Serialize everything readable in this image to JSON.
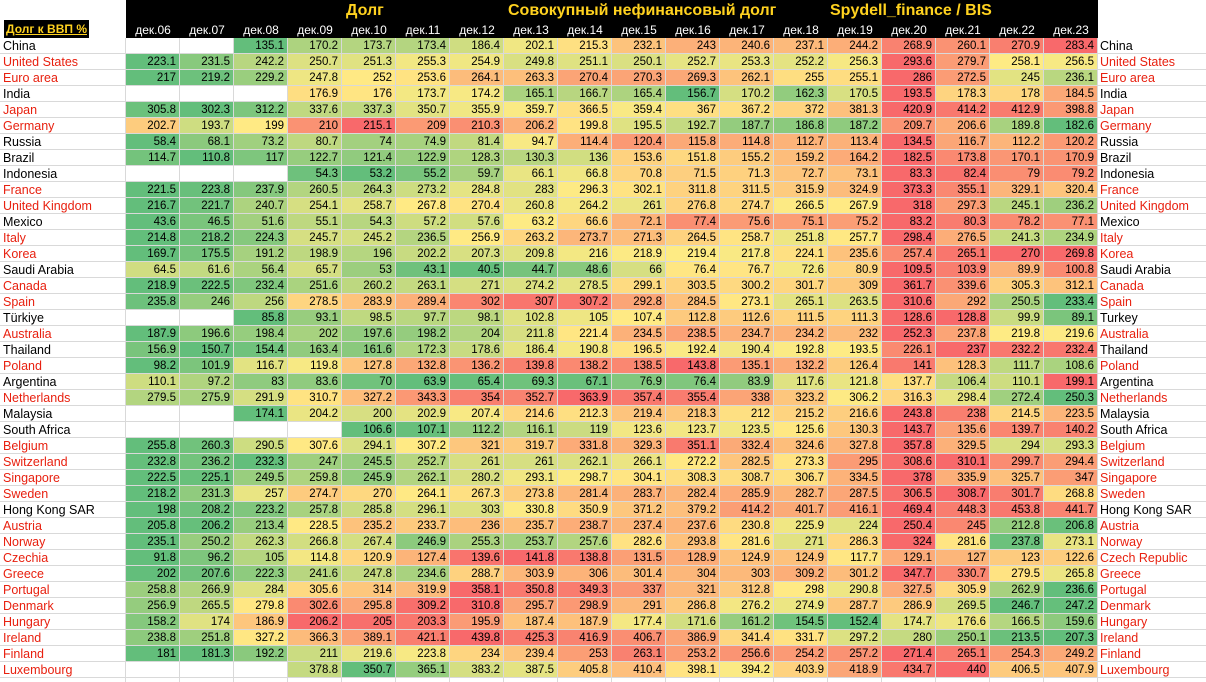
{
  "header": {
    "corner_label": "Долг к ВВП %",
    "title_left": "Долг",
    "title_mid": "Совокупный нефинансовый долг",
    "title_right": "Spydell_finance / BIS"
  },
  "months": [
    "дек.06",
    "дек.07",
    "дек.08",
    "дек.09",
    "дек.10",
    "дек.11",
    "дек.12",
    "дек.13",
    "дек.14",
    "дек.15",
    "дек.16",
    "дек.17",
    "дек.18",
    "дек.19",
    "дек.20",
    "дек.21",
    "дек.22",
    "дек.23"
  ],
  "colors": {
    "header_bg": "#000000",
    "header_text": "#ffd21f",
    "label_red": "#e8200f",
    "label_black": "#000000",
    "scale_low": "#63be7b",
    "scale_mid": "#ffeb84",
    "scale_high": "#f8696b"
  },
  "rows": [
    {
      "name": "China",
      "name_right": "China",
      "red": false,
      "values": [
        null,
        null,
        135.1,
        170.2,
        173.7,
        173.4,
        186.4,
        202.1,
        215.3,
        232.1,
        243,
        240.6,
        237.1,
        244.2,
        268.9,
        260.1,
        270.9,
        283.4
      ]
    },
    {
      "name": "United States",
      "name_right": "United States",
      "red": true,
      "values": [
        223.1,
        231.5,
        242.2,
        250.7,
        251.3,
        255.3,
        254.9,
        249.8,
        251.1,
        250.1,
        252.7,
        253.3,
        252.2,
        256.3,
        293.6,
        279.7,
        258.1,
        256.5
      ]
    },
    {
      "name": "Euro area",
      "name_right": "Euro area",
      "red": true,
      "values": [
        217,
        219.2,
        229.2,
        247.8,
        252,
        253.6,
        264.1,
        263.3,
        270.4,
        270.3,
        269.3,
        262.1,
        255,
        255.1,
        286,
        272.5,
        245,
        236.1
      ]
    },
    {
      "name": "India",
      "name_right": "India",
      "red": false,
      "values": [
        null,
        null,
        null,
        176.9,
        176,
        173.7,
        174.2,
        165.1,
        166.7,
        165.4,
        156.7,
        170.2,
        162.3,
        170.5,
        193.5,
        178.3,
        178,
        184.5
      ]
    },
    {
      "name": "Japan",
      "name_right": "Japan",
      "red": true,
      "values": [
        305.8,
        302.3,
        312.2,
        337.6,
        337.3,
        350.7,
        355.9,
        359.7,
        366.5,
        359.4,
        367,
        367.2,
        372,
        381.3,
        420.9,
        414.2,
        412.9,
        398.8
      ]
    },
    {
      "name": "Germany",
      "name_right": "Germany",
      "red": true,
      "values": [
        202.7,
        193.7,
        199,
        210,
        215.1,
        209,
        210.3,
        206.2,
        199.8,
        195.5,
        192.7,
        187.7,
        186.8,
        187.2,
        209.7,
        206.6,
        189.8,
        182.6
      ]
    },
    {
      "name": "Russia",
      "name_right": "Russia",
      "red": false,
      "values": [
        58.4,
        68.1,
        73.2,
        80.7,
        74,
        74.9,
        81.4,
        94.7,
        114.4,
        120.4,
        115.8,
        114.8,
        112.7,
        113.4,
        134.5,
        116.7,
        112.2,
        120.2
      ]
    },
    {
      "name": "Brazil",
      "name_right": "Brazil",
      "red": false,
      "values": [
        114.7,
        110.8,
        117,
        122.7,
        121.4,
        122.9,
        128.3,
        130.3,
        136,
        153.6,
        151.8,
        155.2,
        159.2,
        164.2,
        182.5,
        173.8,
        170.1,
        170.9
      ]
    },
    {
      "name": "Indonesia",
      "name_right": "Indonesia",
      "red": false,
      "values": [
        null,
        null,
        null,
        54.3,
        53.2,
        55.2,
        59.7,
        66.1,
        66.8,
        70.8,
        71.5,
        71.3,
        72.7,
        73.1,
        83.3,
        82.4,
        79,
        79.2
      ]
    },
    {
      "name": "France",
      "name_right": "France",
      "red": true,
      "values": [
        221.5,
        223.8,
        237.9,
        260.5,
        264.3,
        273.2,
        284.8,
        283,
        296.3,
        302.1,
        311.8,
        311.5,
        315.9,
        324.9,
        373.3,
        355.1,
        329.1,
        320.4
      ]
    },
    {
      "name": "United Kingdom",
      "name_right": "United Kingdom",
      "red": true,
      "values": [
        216.7,
        221.7,
        240.7,
        254.1,
        258.7,
        267.8,
        270.4,
        260.8,
        264.2,
        261,
        276.8,
        274.7,
        266.5,
        267.9,
        318,
        297.3,
        245.1,
        236.2
      ]
    },
    {
      "name": "Mexico",
      "name_right": "Mexico",
      "red": false,
      "values": [
        43.6,
        46.5,
        51.6,
        55.1,
        54.3,
        57.2,
        57.6,
        63.2,
        66.6,
        72.1,
        77.4,
        75.6,
        75.1,
        75.2,
        83.2,
        80.3,
        78.2,
        77.1
      ]
    },
    {
      "name": "Italy",
      "name_right": "Italy",
      "red": true,
      "values": [
        214.8,
        218.2,
        224.3,
        245.7,
        245.2,
        236.5,
        256.9,
        263.2,
        273.7,
        271.3,
        264.5,
        258.7,
        251.8,
        257.7,
        298.4,
        276.5,
        241.3,
        234.9
      ]
    },
    {
      "name": "Korea",
      "name_right": "Korea",
      "red": true,
      "values": [
        169.7,
        175.5,
        191.2,
        198.9,
        196,
        202.2,
        207.3,
        209.8,
        216,
        218.9,
        219.4,
        217.8,
        224.1,
        235.6,
        257.4,
        265.1,
        270,
        269.8
      ]
    },
    {
      "name": "Saudi Arabia",
      "name_right": "Saudi Arabia",
      "red": false,
      "values": [
        64.5,
        61.6,
        56.4,
        65.7,
        53,
        43.1,
        40.5,
        44.7,
        48.6,
        66,
        76.4,
        76.7,
        72.6,
        80.9,
        109.5,
        103.9,
        89.9,
        100.8
      ]
    },
    {
      "name": "Canada",
      "name_right": "Canada",
      "red": true,
      "values": [
        218.9,
        222.5,
        232.4,
        251.6,
        260.2,
        263.1,
        271,
        274.2,
        278.5,
        299.1,
        303.5,
        300.2,
        301.7,
        309,
        361.7,
        339.6,
        305.3,
        312.1
      ]
    },
    {
      "name": "Spain",
      "name_right": "Spain",
      "red": true,
      "values": [
        235.8,
        246,
        256,
        278.5,
        283.9,
        289.4,
        302,
        307,
        307.2,
        292.8,
        284.5,
        273.1,
        265.1,
        263.5,
        310.6,
        292,
        250.5,
        233.4
      ]
    },
    {
      "name": "Türkiye",
      "name_right": "Turkey",
      "red": false,
      "values": [
        null,
        null,
        85.8,
        93.1,
        98.5,
        97.7,
        98.1,
        102.8,
        105,
        107.4,
        112.8,
        112.6,
        111.5,
        111.3,
        128.6,
        128.8,
        99.9,
        89.1
      ]
    },
    {
      "name": "Australia",
      "name_right": "Australia",
      "red": true,
      "values": [
        187.9,
        196.6,
        198.4,
        202,
        197.6,
        198.2,
        204,
        211.8,
        221.4,
        234.5,
        238.5,
        234.7,
        234.2,
        232,
        252.3,
        237.8,
        219.8,
        219.6
      ]
    },
    {
      "name": "Thailand",
      "name_right": "Thailand",
      "red": false,
      "values": [
        156.9,
        150.7,
        154.4,
        163.4,
        161.6,
        172.3,
        178.6,
        186.4,
        190.8,
        196.5,
        192.4,
        190.4,
        192.8,
        193.5,
        226.1,
        237,
        232.2,
        232.4
      ]
    },
    {
      "name": "Poland",
      "name_right": "Poland",
      "red": true,
      "values": [
        98.2,
        101.9,
        116.7,
        119.8,
        127.8,
        132.8,
        136.2,
        139.8,
        138.2,
        138.5,
        143.8,
        135.1,
        132.2,
        126.4,
        141,
        128.3,
        111.7,
        108.6
      ]
    },
    {
      "name": "Argentina",
      "name_right": "Argentina",
      "red": false,
      "values": [
        110.1,
        97.2,
        83,
        83.6,
        70,
        63.9,
        65.4,
        69.3,
        67.1,
        76.9,
        76.4,
        83.9,
        117.6,
        121.8,
        137.7,
        106.4,
        110.1,
        199.1
      ]
    },
    {
      "name": "Netherlands",
      "name_right": "Netherlands",
      "red": true,
      "values": [
        279.5,
        275.9,
        291.9,
        310.7,
        327.2,
        343.3,
        354,
        352.7,
        363.9,
        357.4,
        355.4,
        338,
        323.2,
        306.2,
        316.3,
        298.4,
        272.4,
        250.3
      ]
    },
    {
      "name": "Malaysia",
      "name_right": "Malaysia",
      "red": false,
      "values": [
        null,
        null,
        174.1,
        204.2,
        200,
        202.9,
        207.4,
        214.6,
        212.3,
        219.4,
        218.3,
        212,
        215.2,
        216.6,
        243.8,
        238,
        214.5,
        223.5
      ]
    },
    {
      "name": "South Africa",
      "name_right": "South Africa",
      "red": false,
      "values": [
        null,
        null,
        null,
        null,
        106.6,
        107.1,
        112.2,
        116.1,
        119,
        123.6,
        123.7,
        123.5,
        125.6,
        130.3,
        143.7,
        135.6,
        139.7,
        140.2
      ]
    },
    {
      "name": "Belgium",
      "name_right": "Belgium",
      "red": true,
      "values": [
        255.8,
        260.3,
        290.5,
        307.6,
        294.1,
        307.2,
        321,
        319.7,
        331.8,
        329.3,
        351.1,
        332.4,
        324.6,
        327.8,
        357.8,
        329.5,
        294,
        293.3
      ]
    },
    {
      "name": "Switzerland",
      "name_right": "Switzerland",
      "red": true,
      "values": [
        232.8,
        236.2,
        232.3,
        247,
        245.5,
        252.7,
        261,
        261,
        262.1,
        266.1,
        272.2,
        282.5,
        273.3,
        295,
        308.6,
        310.1,
        299.7,
        294.4
      ]
    },
    {
      "name": "Singapore",
      "name_right": "Singapore",
      "red": true,
      "values": [
        222.5,
        225.1,
        249.5,
        259.8,
        245.9,
        262.1,
        280.2,
        293.1,
        298.7,
        304.1,
        308.3,
        308.7,
        306.7,
        334.5,
        378,
        335.9,
        325.7,
        347
      ]
    },
    {
      "name": "Sweden",
      "name_right": "Sweden",
      "red": true,
      "values": [
        218.2,
        231.3,
        257,
        274.7,
        270,
        264.1,
        267.3,
        273.8,
        281.4,
        283.7,
        282.4,
        285.9,
        282.7,
        287.5,
        306.5,
        308.7,
        301.7,
        268.8
      ]
    },
    {
      "name": "Hong Kong SAR",
      "name_right": "Hong Kong SAR",
      "red": false,
      "values": [
        198,
        208.2,
        223.2,
        257.8,
        285.8,
        296.1,
        303,
        330.8,
        350.9,
        371.2,
        379.2,
        414.2,
        401.7,
        416.1,
        469.4,
        448.3,
        453.8,
        441.7
      ]
    },
    {
      "name": "Austria",
      "name_right": "Austria",
      "red": true,
      "values": [
        205.8,
        206.2,
        213.4,
        228.5,
        235.2,
        233.7,
        236,
        235.7,
        238.7,
        237.4,
        237.6,
        230.8,
        225.9,
        224,
        250.4,
        245,
        212.8,
        206.8
      ]
    },
    {
      "name": "Norway",
      "name_right": "Norway",
      "red": true,
      "values": [
        235.1,
        250.2,
        262.3,
        266.8,
        267.4,
        246.9,
        255.3,
        253.7,
        257.6,
        282.6,
        293.8,
        281.6,
        271,
        286.3,
        324,
        281.6,
        237.8,
        273.1
      ]
    },
    {
      "name": "Czechia",
      "name_right": "Czech Republic",
      "red": true,
      "values": [
        91.8,
        96.2,
        105,
        114.8,
        120.9,
        127.4,
        139.6,
        141.8,
        138.8,
        131.5,
        128.9,
        124.9,
        124.9,
        117.7,
        129.1,
        127,
        123,
        122.6
      ]
    },
    {
      "name": "Greece",
      "name_right": "Greece",
      "red": true,
      "values": [
        202,
        207.6,
        222.3,
        241.6,
        247.8,
        234.6,
        288.7,
        303.9,
        306,
        301.4,
        304,
        303,
        309.2,
        301.2,
        347.7,
        330.7,
        279.5,
        265.8
      ]
    },
    {
      "name": "Portugal",
      "name_right": "Portugal",
      "red": true,
      "values": [
        258.8,
        266.9,
        284,
        305.6,
        314,
        319.9,
        358.1,
        350.8,
        349.3,
        337,
        321,
        312.8,
        298,
        290.8,
        327.5,
        305.9,
        262.9,
        236.6
      ]
    },
    {
      "name": "Denmark",
      "name_right": "Denmark",
      "red": true,
      "values": [
        256.9,
        265.5,
        279.8,
        302.6,
        295.8,
        309.2,
        310.8,
        295.7,
        298.9,
        291,
        286.8,
        276.2,
        274.9,
        287.7,
        286.9,
        269.5,
        246.7,
        247.2
      ]
    },
    {
      "name": "Hungary",
      "name_right": "Hungary",
      "red": true,
      "values": [
        158.2,
        174,
        186.9,
        206.2,
        205,
        203.3,
        195.9,
        187.4,
        187.9,
        177.4,
        171.6,
        161.2,
        154.5,
        152.4,
        174.7,
        176.6,
        166.5,
        159.6
      ]
    },
    {
      "name": "Ireland",
      "name_right": "Ireland",
      "red": true,
      "values": [
        238.8,
        251.8,
        327.2,
        366.3,
        389.1,
        421.1,
        439.8,
        425.3,
        416.9,
        406.7,
        386.9,
        341.4,
        331.7,
        297.2,
        280,
        250.1,
        213.5,
        207.3
      ]
    },
    {
      "name": "Finland",
      "name_right": "Finland",
      "red": true,
      "values": [
        181,
        181.3,
        192.2,
        211,
        219.6,
        223.8,
        234,
        239.4,
        253,
        263.1,
        253.2,
        256.6,
        254.2,
        257.2,
        271.4,
        265.1,
        254.3,
        249.2
      ]
    },
    {
      "name": "Luxembourg",
      "name_right": "Luxembourg",
      "red": true,
      "values": [
        null,
        null,
        null,
        378.8,
        350.7,
        365.1,
        383.2,
        387.5,
        405.8,
        410.4,
        398.1,
        394.2,
        403.9,
        418.9,
        434.7,
        440,
        406.5,
        407.9
      ]
    }
  ]
}
